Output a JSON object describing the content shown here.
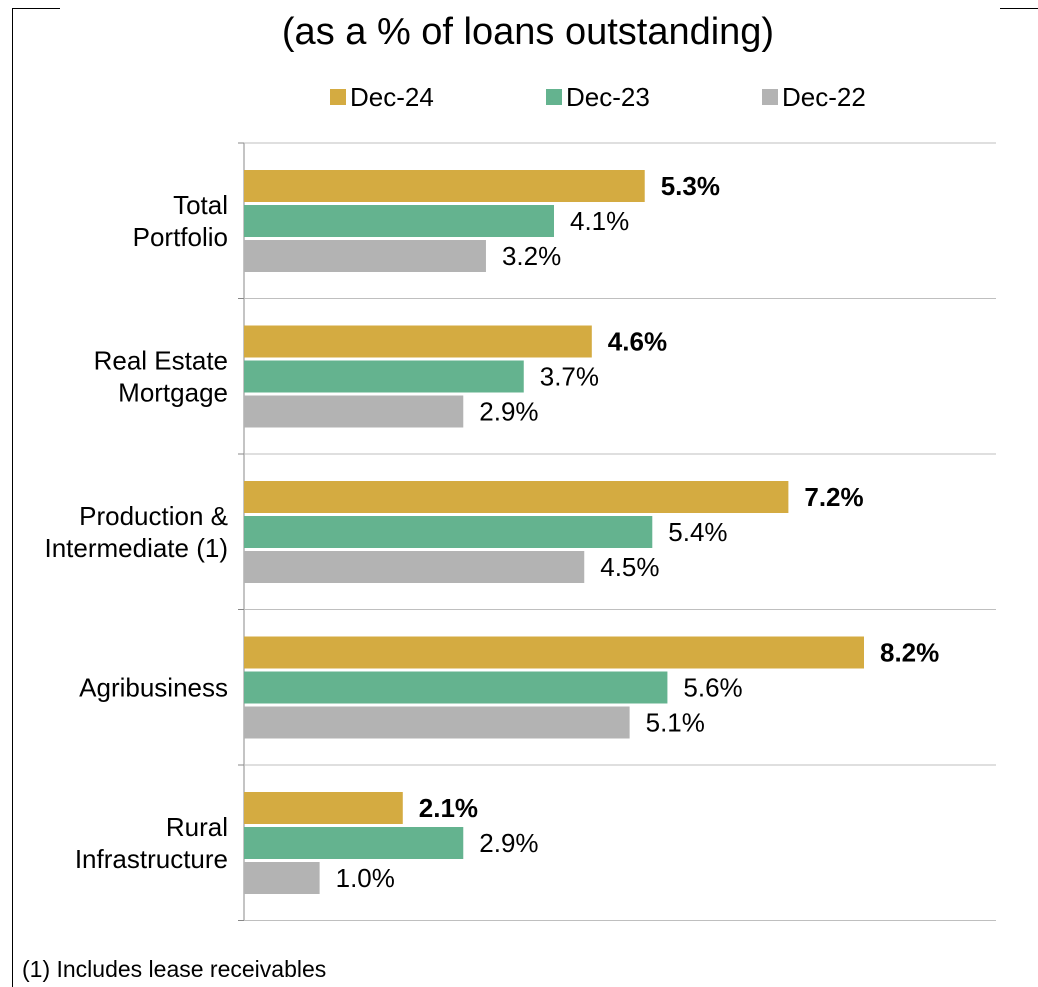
{
  "chart_data": {
    "type": "bar",
    "orientation": "horizontal",
    "title": "(as a % of loans outstanding)",
    "categories": [
      [
        "Total",
        "Portfolio"
      ],
      [
        "Real Estate",
        "Mortgage"
      ],
      [
        "Production &",
        "Intermediate (1)"
      ],
      [
        "Agribusiness"
      ],
      [
        "Rural",
        "Infrastructure"
      ]
    ],
    "series": [
      {
        "name": "Dec-24",
        "color": "#D4AB41",
        "bold_labels": true,
        "values": [
          5.3,
          4.6,
          7.2,
          8.2,
          2.1
        ],
        "labels": [
          "5.3%",
          "4.6%",
          "7.2%",
          "8.2%",
          "2.1%"
        ]
      },
      {
        "name": "Dec-23",
        "color": "#64B38F",
        "bold_labels": false,
        "values": [
          4.1,
          3.7,
          5.4,
          5.6,
          2.9
        ],
        "labels": [
          "4.1%",
          "3.7%",
          "5.4%",
          "5.6%",
          "2.9%"
        ]
      },
      {
        "name": "Dec-22",
        "color": "#B3B3B3",
        "bold_labels": false,
        "values": [
          3.2,
          2.9,
          4.5,
          5.1,
          1.0
        ],
        "labels": [
          "3.2%",
          "2.9%",
          "4.5%",
          "5.1%",
          "1.0%"
        ]
      }
    ],
    "xlim": [
      0,
      10
    ],
    "grid": "horizontal separators between categories",
    "legend_position": "top"
  },
  "footnote": "(1) Includes lease receivables"
}
